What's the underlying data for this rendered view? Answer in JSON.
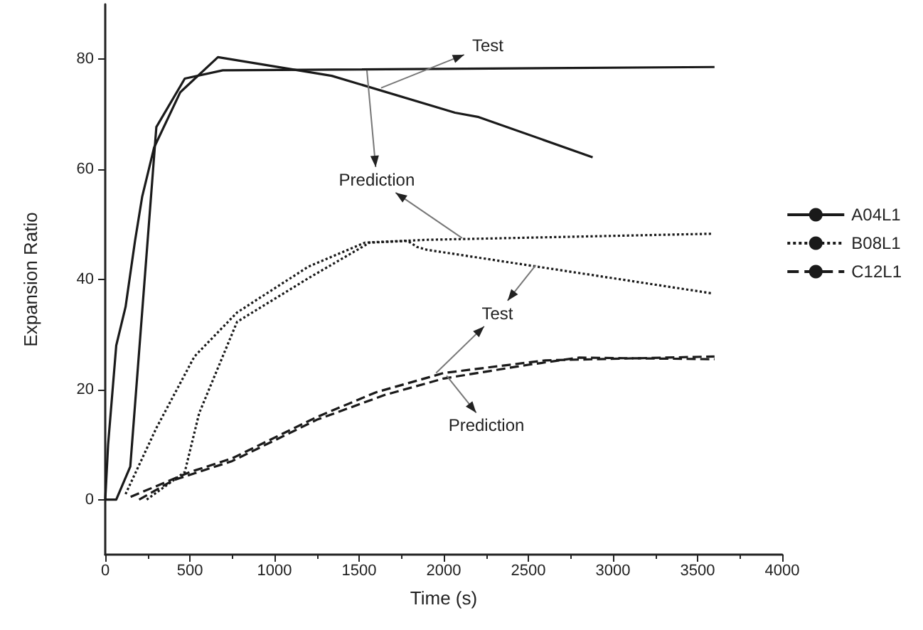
{
  "chart_data": {
    "type": "line",
    "xlabel": "Time (s)",
    "ylabel": "Expansion Ratio",
    "xlim": [
      0,
      4000
    ],
    "xticks": [
      0,
      500,
      1000,
      1500,
      2000,
      2500,
      3000,
      3500,
      4000
    ],
    "ylim": [
      -10,
      90
    ],
    "yticks": [
      0,
      20,
      40,
      60,
      80
    ],
    "grid": false,
    "legend": "right",
    "marker": "none",
    "series": [
      {
        "name": "A04L1",
        "color": "#1a1a1a",
        "line_style": "solid",
        "x": [
          0,
          17,
          65,
          120,
          176,
          218,
          289,
          443,
          666,
          1338,
          2067,
          2207,
          2880
        ],
        "values": [
          0,
          10,
          28,
          35,
          47,
          55,
          64,
          74,
          80.4,
          77,
          70.3,
          69.5,
          62.2
        ]
      },
      {
        "color": "#1a1a1a",
        "line_style": "solid",
        "x": [
          0,
          65,
          148,
          302,
          470,
          695,
          3600
        ],
        "values": [
          0,
          0,
          6,
          67.7,
          76.5,
          78,
          78.6
        ]
      },
      {
        "name": "B08L1",
        "color": "#1a1a1a",
        "line_style": "dotted",
        "x": [
          120,
          302,
          527,
          779,
          1199,
          1535,
          1899,
          3580
        ],
        "values": [
          1,
          13,
          26,
          34,
          42.3,
          46.7,
          47.2,
          48.3
        ]
      },
      {
        "color": "#1a1a1a",
        "line_style": "dotted",
        "x": [
          245,
          470,
          555,
          779,
          1199,
          1563,
          1787,
          1843,
          1899,
          3580
        ],
        "values": [
          0,
          5,
          15.7,
          32.3,
          40.2,
          46.7,
          47,
          45.9,
          45.4,
          37.5
        ]
      },
      {
        "name": "C12L1",
        "color": "#1a1a1a",
        "line_style": "dashed",
        "x": [
          150,
          500,
          750,
          1250,
          1600,
          2000,
          2600,
          3600
        ],
        "values": [
          0.5,
          5,
          7.5,
          15,
          19.5,
          23,
          25.3,
          26
        ]
      },
      {
        "color": "#1a1a1a",
        "line_style": "dashed",
        "x": [
          200,
          400,
          750,
          1250,
          1650,
          2000,
          2500,
          2800,
          3600
        ],
        "values": [
          0,
          3.5,
          7,
          14.5,
          19,
          22,
          24.5,
          25.8,
          25.5
        ]
      }
    ],
    "annotations": [
      {
        "text": "Test",
        "x": 1630,
        "y": 74.8
      },
      {
        "text": "Prediction",
        "x": 1546,
        "y": 78
      },
      {
        "text": "Test",
        "x": 2544,
        "y": 42.6
      },
      {
        "text": "Prediction",
        "x": 2017,
        "y": 22.5
      }
    ]
  }
}
